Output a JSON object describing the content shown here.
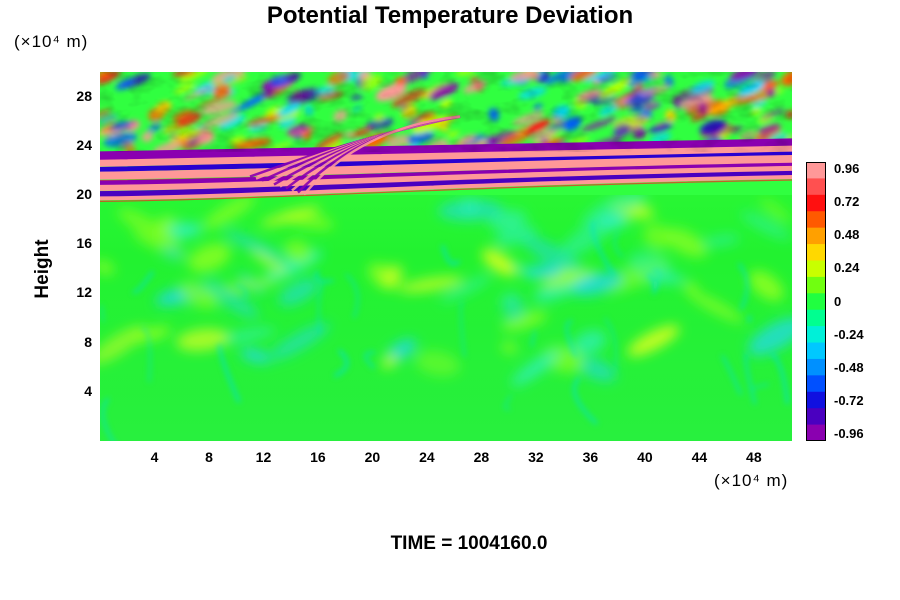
{
  "chart_data": {
    "type": "heatmap",
    "title": "Potential Temperature Deviation",
    "ylabel": "Height",
    "y_unit": "(×10⁴ m)",
    "x_unit": "(×10⁴ m)",
    "x_ticks": [
      "4",
      "8",
      "12",
      "16",
      "20",
      "24",
      "28",
      "32",
      "36",
      "40",
      "44",
      "48"
    ],
    "y_ticks": [
      "4",
      "8",
      "12",
      "16",
      "20",
      "24",
      "28"
    ],
    "xlim": [
      0,
      50.8
    ],
    "ylim": [
      0,
      30
    ],
    "colorbar_ticks": [
      "0.96",
      "0.72",
      "0.48",
      "0.24",
      "0",
      "-0.24",
      "-0.48",
      "-0.72",
      "-0.96"
    ],
    "colorbar_range": [
      -0.96,
      0.96
    ],
    "colormap": [
      "#8a00b0",
      "#2a00d0",
      "#0060ff",
      "#00d8ff",
      "#20ff80",
      "#30ff30",
      "#c0ff00",
      "#ffd000",
      "#ff6000",
      "#ff1010",
      "#ff9898"
    ],
    "time_label": "TIME = 1004160.0"
  }
}
